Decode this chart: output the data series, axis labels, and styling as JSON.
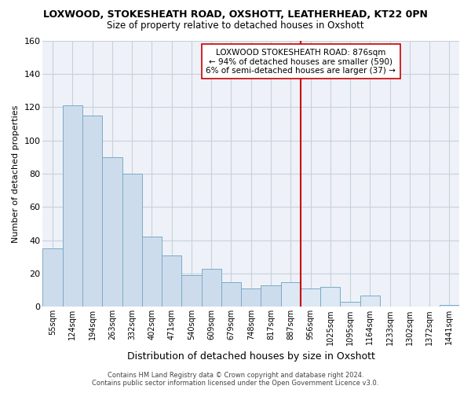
{
  "title": "LOXWOOD, STOKESHEATH ROAD, OXSHOTT, LEATHERHEAD, KT22 0PN",
  "subtitle": "Size of property relative to detached houses in Oxshott",
  "xlabel": "Distribution of detached houses by size in Oxshott",
  "ylabel": "Number of detached properties",
  "bar_labels": [
    "55sqm",
    "124sqm",
    "194sqm",
    "263sqm",
    "332sqm",
    "402sqm",
    "471sqm",
    "540sqm",
    "609sqm",
    "679sqm",
    "748sqm",
    "817sqm",
    "887sqm",
    "956sqm",
    "1025sqm",
    "1095sqm",
    "1164sqm",
    "1233sqm",
    "1302sqm",
    "1372sqm",
    "1441sqm"
  ],
  "bar_values": [
    35,
    121,
    115,
    90,
    80,
    42,
    31,
    19,
    23,
    15,
    11,
    13,
    15,
    11,
    12,
    3,
    7,
    0,
    0,
    0,
    1
  ],
  "bar_color_normal": "#cddcec",
  "bar_color_highlight": "#dce8f3",
  "bar_edge_color": "#7aaac8",
  "vline_bar_index": 12,
  "vline_color": "#cc0000",
  "ylim": [
    0,
    160
  ],
  "yticks": [
    0,
    20,
    40,
    60,
    80,
    100,
    120,
    140,
    160
  ],
  "annotation_title": "LOXWOOD STOKESHEATH ROAD: 876sqm",
  "annotation_line1": "← 94% of detached houses are smaller (590)",
  "annotation_line2": "6% of semi-detached houses are larger (37) →",
  "footer_line1": "Contains HM Land Registry data © Crown copyright and database right 2024.",
  "footer_line2": "Contains public sector information licensed under the Open Government Licence v3.0.",
  "background_color": "#ffffff",
  "grid_color": "#c8d0dc",
  "plot_bg_color": "#eef2f8"
}
